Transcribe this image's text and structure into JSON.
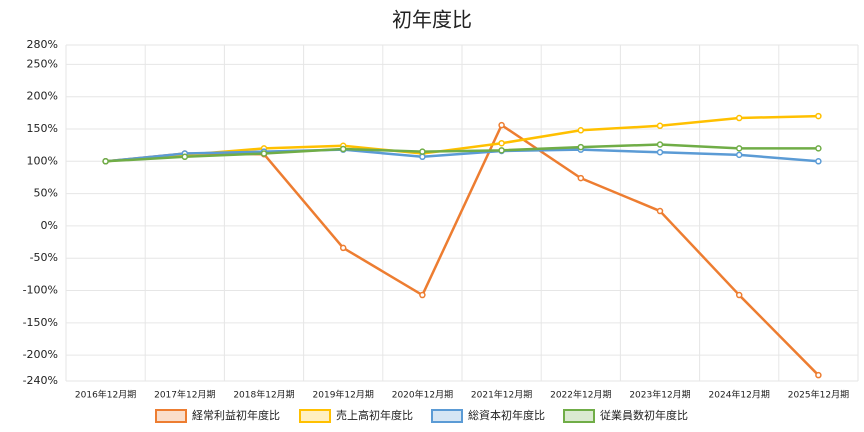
{
  "chart_data": {
    "type": "line",
    "title": "初年度比",
    "categories": [
      "2016年12月期",
      "2017年12月期",
      "2018年12月期",
      "2019年12月期",
      "2020年12月期",
      "2021年12月期",
      "2022年12月期",
      "2023年12月期",
      "2024年12月期",
      "2025年12月期"
    ],
    "series": [
      {
        "name": "経常利益初年度比",
        "color": "#ed7d31",
        "values": [
          100,
          112,
          111,
          -34,
          -107,
          156,
          74,
          23,
          -107,
          -231
        ]
      },
      {
        "name": "売上高初年度比",
        "color": "#ffc000",
        "values": [
          100,
          110,
          120,
          124,
          112,
          128,
          148,
          155,
          167,
          170
        ]
      },
      {
        "name": "総資本初年度比",
        "color": "#5b9bd5",
        "values": [
          100,
          112,
          115,
          118,
          107,
          116,
          118,
          114,
          110,
          100
        ]
      },
      {
        "name": "従業員数初年度比",
        "color": "#70ad47",
        "values": [
          100,
          107,
          112,
          119,
          115,
          117,
          122,
          126,
          120,
          120
        ]
      }
    ],
    "ylim": [
      -240,
      280
    ],
    "yticks": [
      {
        "value": -240,
        "label": "-240%"
      },
      {
        "value": -200,
        "label": "-200%"
      },
      {
        "value": -150,
        "label": "-150%"
      },
      {
        "value": -100,
        "label": "-100%"
      },
      {
        "value": -50,
        "label": "-50%"
      },
      {
        "value": 0,
        "label": "0%"
      },
      {
        "value": 50,
        "label": "50%"
      },
      {
        "value": 100,
        "label": "100%"
      },
      {
        "value": 150,
        "label": "150%"
      },
      {
        "value": 200,
        "label": "200%"
      },
      {
        "value": 250,
        "label": "250%"
      },
      {
        "value": 280,
        "label": "280%"
      }
    ],
    "grid": true,
    "legend": "bottom"
  }
}
